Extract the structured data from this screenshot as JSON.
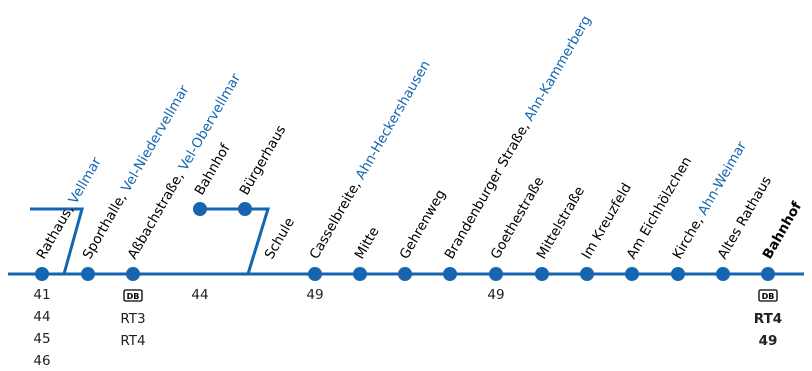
{
  "route": {
    "color": "#1565b0",
    "stops": [
      {
        "name": "Rathaus, ",
        "town": "Vellmar",
        "bold": false
      },
      {
        "name": "Sporthalle, ",
        "town": "Vel-Niedervellmar",
        "bold": false
      },
      {
        "name": "Aßbachstraße, ",
        "town": "Vel-Obervellmar",
        "bold": false
      },
      {
        "name": "Bahnhof",
        "town": "",
        "bold": false
      },
      {
        "name": "Bürgerhaus",
        "town": "",
        "bold": false
      },
      {
        "name": "Schule",
        "town": "",
        "bold": false
      },
      {
        "name": "Casselbreite, ",
        "town": "Ahn-Heckershausen",
        "bold": false
      },
      {
        "name": "Mitte",
        "town": "",
        "bold": false
      },
      {
        "name": "Gehrenweg",
        "town": "",
        "bold": false
      },
      {
        "name": "Brandenburger Straße, ",
        "town": "Ahn-Kammerberg",
        "bold": false
      },
      {
        "name": "Goethestraße",
        "town": "",
        "bold": false
      },
      {
        "name": "Mittelstraße",
        "town": "",
        "bold": false
      },
      {
        "name": "Im Kreuzfeld",
        "town": "",
        "bold": false
      },
      {
        "name": "Am Eichhölzchen",
        "town": "",
        "bold": false
      },
      {
        "name": "Kirche, ",
        "town": "Ahn-Weimar",
        "bold": false
      },
      {
        "name": "Altes Rathaus",
        "town": "",
        "bold": false
      },
      {
        "name": "Bahnhof",
        "town": "",
        "bold": true
      }
    ],
    "connections": [
      {
        "stop": 0,
        "lines": [
          "41",
          "44",
          "45",
          "46"
        ],
        "db": false,
        "bold": false
      },
      {
        "stop": 2,
        "lines": [
          "RT3",
          "RT4"
        ],
        "db": true,
        "bold": false
      },
      {
        "stop": 3,
        "lines": [
          "44"
        ],
        "db": false,
        "bold": false
      },
      {
        "stop": 6,
        "lines": [
          "49"
        ],
        "db": false,
        "bold": false
      },
      {
        "stop": 10,
        "lines": [
          "49"
        ],
        "db": false,
        "bold": false
      },
      {
        "stop": 16,
        "lines": [
          "RT4",
          "49"
        ],
        "db": true,
        "bold": true
      }
    ],
    "db_logo": "DB"
  }
}
